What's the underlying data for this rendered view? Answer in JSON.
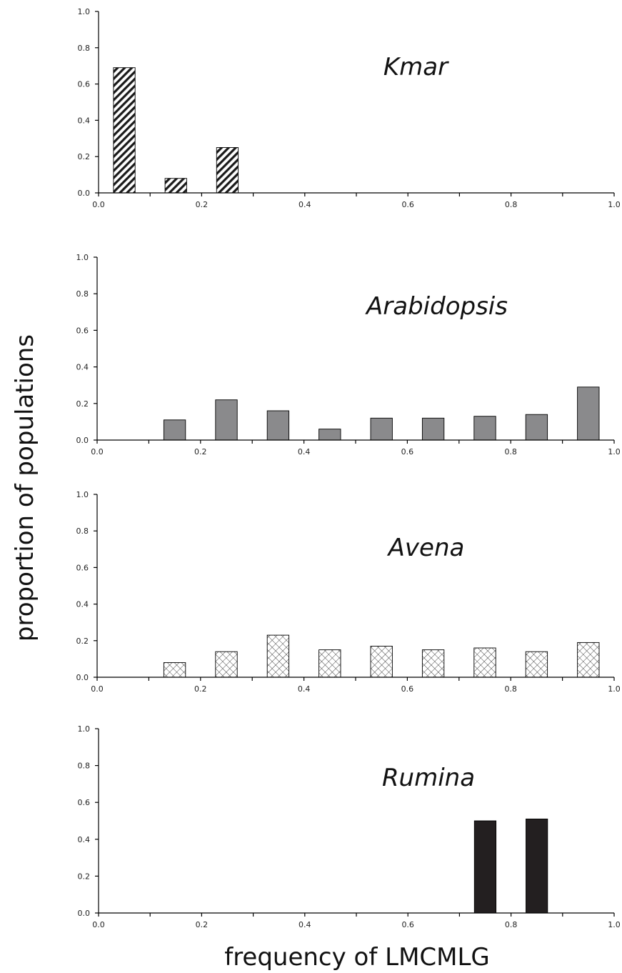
{
  "chart_data": [
    {
      "type": "bar",
      "title": "Kmar",
      "x": [
        0.05,
        0.15,
        0.25
      ],
      "values": [
        0.69,
        0.08,
        0.25
      ],
      "xlim": [
        0.0,
        1.0
      ],
      "ylim": [
        0.0,
        1.0
      ],
      "xticks": [
        "0.0",
        "0.2",
        "0.4",
        "0.6",
        "0.8",
        "1.0"
      ],
      "yticks": [
        "0.0",
        "0.2",
        "0.4",
        "0.6",
        "0.8",
        "1.0"
      ],
      "fill": "diagonal-hatch"
    },
    {
      "type": "bar",
      "title": "Arabidopsis",
      "x": [
        0.15,
        0.25,
        0.35,
        0.45,
        0.55,
        0.65,
        0.75,
        0.85,
        0.95
      ],
      "values": [
        0.11,
        0.22,
        0.16,
        0.06,
        0.12,
        0.12,
        0.13,
        0.14,
        0.29
      ],
      "xlim": [
        0.0,
        1.0
      ],
      "ylim": [
        0.0,
        1.0
      ],
      "xticks": [
        "0.0",
        "0.2",
        "0.4",
        "0.6",
        "0.8",
        "1.0"
      ],
      "yticks": [
        "0.0",
        "0.2",
        "0.4",
        "0.6",
        "0.8",
        "1.0"
      ],
      "fill": "#8a8a8c"
    },
    {
      "type": "bar",
      "title": "Avena",
      "x": [
        0.15,
        0.25,
        0.35,
        0.45,
        0.55,
        0.65,
        0.75,
        0.85,
        0.95
      ],
      "values": [
        0.08,
        0.14,
        0.23,
        0.15,
        0.17,
        0.15,
        0.16,
        0.14,
        0.19
      ],
      "xlim": [
        0.0,
        1.0
      ],
      "ylim": [
        0.0,
        1.0
      ],
      "xticks": [
        "0.0",
        "0.2",
        "0.4",
        "0.6",
        "0.8",
        "1.0"
      ],
      "yticks": [
        "0.0",
        "0.2",
        "0.4",
        "0.6",
        "0.8",
        "1.0"
      ],
      "fill": "crosshatch"
    },
    {
      "type": "bar",
      "title": "Rumina",
      "x": [
        0.75,
        0.85
      ],
      "values": [
        0.5,
        0.51
      ],
      "xlim": [
        0.0,
        1.0
      ],
      "ylim": [
        0.0,
        1.0
      ],
      "xticks": [
        "0.0",
        "0.2",
        "0.4",
        "0.6",
        "0.8",
        "1.0"
      ],
      "yticks": [
        "0.0",
        "0.2",
        "0.4",
        "0.6",
        "0.8",
        "1.0"
      ],
      "fill": "#231f20"
    }
  ],
  "ylabel": "proportion of populations",
  "xlabel": "frequency of LMCMLG"
}
